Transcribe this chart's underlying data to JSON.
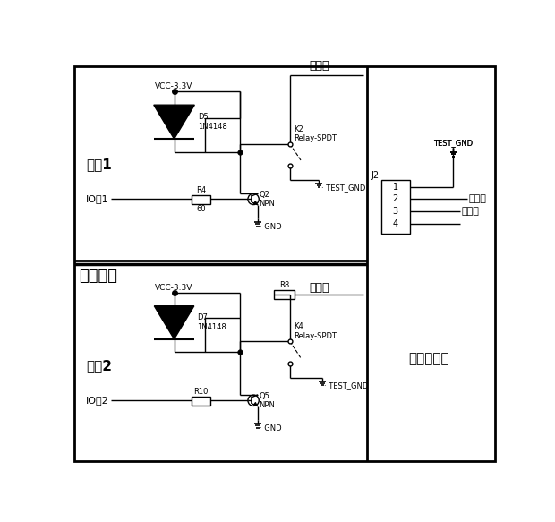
{
  "bg_color": "#ffffff",
  "fig_width": 6.2,
  "fig_height": 5.83,
  "labels": {
    "vcc": "VCC-3.3V",
    "port1": "端口1",
    "port2": "端口2",
    "io1": "IO口1",
    "io2": "IO口2",
    "d5": "D5\n1N4148",
    "d7": "D7\n1N4148",
    "r4": "R4",
    "r4_val": "60",
    "r10": "R10",
    "r8": "R8",
    "q2": "Q2\nNPN",
    "q5": "Q5\nNPN",
    "k2": "K2\nRelay-SPDT",
    "k4": "K4\nRelay-SPDT",
    "j2": "J2",
    "test_device": "测试装置",
    "glucose_iface": "血糖仪接口",
    "insert_label_top": "插条线",
    "measure_label": "测值线",
    "insert_label_right": "插条线",
    "measure_label_right": "测值线",
    "test_gnd": "TEST_GND",
    "gnd": "GND",
    "pins": [
      "1",
      "2",
      "3",
      "4"
    ]
  }
}
